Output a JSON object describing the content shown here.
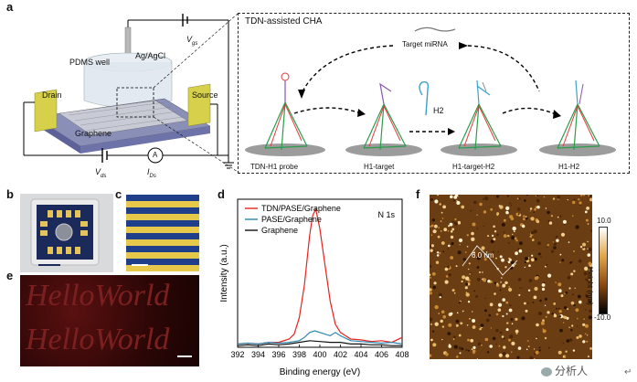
{
  "panels": {
    "a": {
      "label": "a",
      "left": {
        "vgs": "V",
        "vgs_sub": "gs",
        "agagcl": "Ag/AgCl",
        "pdms": "PDMS well",
        "drain": "Drain",
        "source": "Source",
        "graphene": "Graphene",
        "vds": "V",
        "vds_sub": "ds",
        "ids": "I",
        "ids_sub": "Ds",
        "ammeter": "A"
      },
      "cha": {
        "title": "TDN-assisted CHA",
        "target": "Target miRNA",
        "h2": "H2",
        "steps": [
          "TDN-H1 probe",
          "H1-target",
          "H1-target-H2",
          "H1-H2"
        ]
      }
    },
    "b": {
      "label": "b"
    },
    "c": {
      "label": "c"
    },
    "e": {
      "label": "e",
      "overlay_text": [
        "HelloWorld",
        "HelloWorld"
      ]
    },
    "f": {
      "label": "f",
      "scale_max": "10.0",
      "scale_min": "-10.0",
      "scale_title": "Height (nm)",
      "annotation": "6.0 nm"
    },
    "watermark": "分析人",
    "corner_mark": "↵"
  },
  "chart_data": {
    "type": "line",
    "label": "d",
    "xlabel": "Binding energy (eV)",
    "ylabel": "Intensity (a.u.)",
    "annotation": "N 1s",
    "xlim": [
      392,
      408
    ],
    "xticks": [
      "392",
      "394",
      "396",
      "398",
      "400",
      "402",
      "404",
      "406",
      "408"
    ],
    "legend_position": "top-left",
    "series": [
      {
        "name": "TDN/PASE/Graphene",
        "color": "#e8231e",
        "x": [
          392,
          393,
          394,
          395,
          396,
          397,
          397.5,
          398,
          398.5,
          399,
          399.3,
          399.6,
          400,
          400.5,
          401,
          401.5,
          402,
          402.5,
          403,
          404,
          405,
          406,
          407,
          408
        ],
        "y": [
          0.02,
          0.025,
          0.02,
          0.03,
          0.03,
          0.05,
          0.08,
          0.18,
          0.38,
          0.68,
          0.8,
          0.84,
          0.72,
          0.5,
          0.28,
          0.14,
          0.09,
          0.07,
          0.05,
          0.045,
          0.035,
          0.04,
          0.03,
          0.06
        ]
      },
      {
        "name": "PASE/Graphene",
        "color": "#2e86b0",
        "x": [
          392,
          393,
          394,
          395,
          396,
          397,
          398,
          398.5,
          399,
          399.5,
          400,
          400.5,
          401,
          401.5,
          402,
          403,
          404,
          405,
          406,
          407,
          408
        ],
        "y": [
          0.02,
          0.025,
          0.02,
          0.03,
          0.025,
          0.03,
          0.04,
          0.06,
          0.09,
          0.1,
          0.09,
          0.08,
          0.07,
          0.09,
          0.07,
          0.04,
          0.035,
          0.03,
          0.025,
          0.03,
          0.02
        ]
      },
      {
        "name": "Graphene",
        "color": "#111111",
        "x": [
          392,
          393,
          394,
          395,
          396,
          397,
          398,
          399,
          400,
          401,
          402,
          403,
          404,
          405,
          406,
          407,
          408
        ],
        "y": [
          0.01,
          0.015,
          0.01,
          0.02,
          0.015,
          0.02,
          0.03,
          0.04,
          0.035,
          0.03,
          0.03,
          0.02,
          0.02,
          0.015,
          0.015,
          0.01,
          0.01
        ]
      }
    ]
  }
}
